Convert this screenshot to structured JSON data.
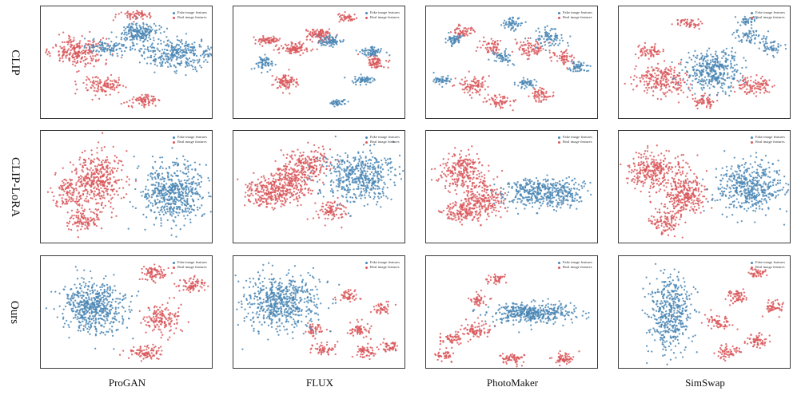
{
  "chart_data": {
    "type": "scatter",
    "description_rows": [
      "CLIP",
      "CLIP-LoRA",
      "Ours"
    ],
    "columns": [
      "ProGAN",
      "FLUX",
      "PhotoMaker",
      "SimSwap"
    ],
    "legend": {
      "fake": "Fake image features",
      "real": "Real image features"
    },
    "colors": {
      "fake": "#4a86b4",
      "real": "#d9575b"
    },
    "axes": {
      "xlim": [
        0,
        100
      ],
      "ylim": [
        0,
        100
      ],
      "ticks": false
    },
    "panels": [
      {
        "row": "CLIP",
        "column": "ProGAN",
        "fake_clusters": [
          [
            57,
            23,
            10,
            7,
            180
          ],
          [
            80,
            42,
            20,
            12,
            330
          ],
          [
            40,
            36,
            12,
            6,
            110
          ]
        ],
        "real_clusters": [
          [
            54,
            8,
            9,
            4,
            60
          ],
          [
            22,
            40,
            14,
            12,
            240
          ],
          [
            37,
            70,
            12,
            8,
            120
          ],
          [
            60,
            83,
            9,
            5,
            80
          ]
        ]
      },
      {
        "row": "CLIP",
        "column": "FLUX",
        "fake_clusters": [
          [
            80,
            40,
            6,
            4,
            70
          ],
          [
            18,
            50,
            5,
            6,
            60
          ],
          [
            75,
            65,
            6,
            4,
            60
          ],
          [
            60,
            85,
            5,
            3,
            40
          ],
          [
            56,
            30,
            7,
            5,
            80
          ]
        ],
        "real_clusters": [
          [
            20,
            30,
            6,
            3,
            70
          ],
          [
            50,
            25,
            7,
            5,
            100
          ],
          [
            66,
            10,
            5,
            3,
            40
          ],
          [
            30,
            66,
            7,
            6,
            90
          ],
          [
            83,
            50,
            5,
            5,
            70
          ],
          [
            35,
            37,
            8,
            4,
            100
          ]
        ]
      },
      {
        "row": "CLIP",
        "column": "PhotoMaker",
        "fake_clusters": [
          [
            49,
            15,
            5,
            5,
            60
          ],
          [
            16,
            30,
            4,
            5,
            55
          ],
          [
            72,
            28,
            8,
            8,
            85
          ],
          [
            45,
            45,
            5,
            6,
            55
          ],
          [
            57,
            68,
            5,
            4,
            50
          ],
          [
            88,
            54,
            5,
            5,
            55
          ],
          [
            9,
            65,
            5,
            4,
            45
          ]
        ],
        "real_clusters": [
          [
            60,
            37,
            8,
            8,
            80
          ],
          [
            38,
            35,
            6,
            6,
            60
          ],
          [
            27,
            70,
            8,
            7,
            90
          ],
          [
            66,
            78,
            6,
            6,
            60
          ],
          [
            80,
            45,
            6,
            6,
            55
          ],
          [
            22,
            22,
            6,
            5,
            60
          ],
          [
            43,
            84,
            7,
            5,
            60
          ]
        ]
      },
      {
        "row": "CLIP",
        "column": "SimSwap",
        "fake_clusters": [
          [
            55,
            57,
            15,
            15,
            380
          ],
          [
            88,
            37,
            6,
            6,
            50
          ],
          [
            76,
            27,
            8,
            6,
            60
          ],
          [
            75,
            12,
            5,
            4,
            40
          ]
        ],
        "real_clusters": [
          [
            25,
            65,
            14,
            12,
            230
          ],
          [
            40,
            15,
            6,
            4,
            50
          ],
          [
            78,
            70,
            10,
            7,
            110
          ],
          [
            18,
            40,
            6,
            5,
            60
          ],
          [
            50,
            84,
            6,
            5,
            60
          ]
        ]
      },
      {
        "row": "CLIP-LoRA",
        "column": "ProGAN",
        "fake_clusters": [
          [
            77,
            54,
            16,
            24,
            560
          ]
        ],
        "real_clusters": [
          [
            17,
            55,
            10,
            12,
            120
          ],
          [
            33,
            43,
            13,
            22,
            380
          ],
          [
            25,
            80,
            9,
            8,
            100
          ]
        ]
      },
      {
        "row": "CLIP-LoRA",
        "column": "FLUX",
        "fake_clusters": [
          [
            73,
            40,
            20,
            20,
            480
          ]
        ],
        "real_clusters": [
          [
            20,
            54,
            12,
            12,
            220
          ],
          [
            45,
            30,
            10,
            12,
            150
          ],
          [
            57,
            70,
            8,
            9,
            90
          ],
          [
            33,
            43,
            12,
            18,
            260
          ]
        ]
      },
      {
        "row": "CLIP-LoRA",
        "column": "PhotoMaker",
        "fake_clusters": [
          [
            68,
            55,
            22,
            11,
            450
          ]
        ],
        "real_clusters": [
          [
            20,
            35,
            12,
            15,
            230
          ],
          [
            33,
            60,
            12,
            14,
            230
          ],
          [
            20,
            72,
            10,
            8,
            130
          ]
        ]
      },
      {
        "row": "CLIP-LoRA",
        "column": "SimSwap",
        "fake_clusters": [
          [
            75,
            50,
            18,
            20,
            480
          ]
        ],
        "real_clusters": [
          [
            20,
            35,
            14,
            14,
            280
          ],
          [
            38,
            55,
            12,
            16,
            280
          ],
          [
            27,
            80,
            9,
            10,
            110
          ]
        ]
      },
      {
        "row": "Ours",
        "column": "ProGAN",
        "fake_clusters": [
          [
            30,
            45,
            16,
            22,
            560
          ]
        ],
        "real_clusters": [
          [
            65,
            15,
            8,
            6,
            80
          ],
          [
            88,
            25,
            8,
            6,
            80
          ],
          [
            70,
            55,
            10,
            12,
            150
          ],
          [
            60,
            85,
            9,
            6,
            90
          ]
        ]
      },
      {
        "row": "Ours",
        "column": "FLUX",
        "fake_clusters": [
          [
            28,
            40,
            20,
            22,
            600
          ]
        ],
        "real_clusters": [
          [
            72,
            65,
            6,
            6,
            60
          ],
          [
            66,
            35,
            6,
            5,
            50
          ],
          [
            77,
            85,
            6,
            5,
            55
          ],
          [
            90,
            80,
            5,
            5,
            45
          ],
          [
            47,
            65,
            5,
            5,
            45
          ],
          [
            52,
            82,
            6,
            5,
            55
          ],
          [
            86,
            47,
            5,
            5,
            45
          ]
        ]
      },
      {
        "row": "Ours",
        "column": "PhotoMaker",
        "fake_clusters": [
          [
            62,
            50,
            22,
            8,
            420
          ]
        ],
        "real_clusters": [
          [
            30,
            65,
            8,
            6,
            80
          ],
          [
            15,
            72,
            6,
            5,
            55
          ],
          [
            50,
            90,
            7,
            5,
            60
          ],
          [
            80,
            90,
            6,
            5,
            60
          ],
          [
            30,
            38,
            5,
            5,
            45
          ],
          [
            40,
            20,
            5,
            4,
            40
          ],
          [
            10,
            88,
            5,
            4,
            40
          ]
        ]
      },
      {
        "row": "Ours",
        "column": "SimSwap",
        "fake_clusters": [
          [
            30,
            50,
            12,
            30,
            450
          ]
        ],
        "real_clusters": [
          [
            80,
            75,
            6,
            6,
            60
          ],
          [
            68,
            35,
            6,
            6,
            60
          ],
          [
            90,
            45,
            5,
            5,
            50
          ],
          [
            58,
            58,
            6,
            6,
            60
          ],
          [
            63,
            85,
            6,
            6,
            60
          ],
          [
            80,
            15,
            5,
            4,
            40
          ]
        ]
      }
    ]
  }
}
